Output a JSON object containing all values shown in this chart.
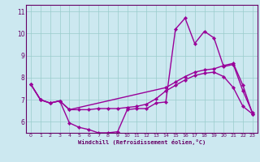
{
  "title": "",
  "xlabel": "Windchill (Refroidissement éolien,°C)",
  "background_color": "#cce8f0",
  "line_color": "#990099",
  "grid_color": "#99cccc",
  "axis_color": "#660066",
  "text_color": "#660066",
  "xlim": [
    -0.5,
    23.5
  ],
  "ylim": [
    5.5,
    11.3
  ],
  "yticks": [
    6,
    7,
    8,
    9,
    10,
    11
  ],
  "xticks": [
    0,
    1,
    2,
    3,
    4,
    5,
    6,
    7,
    8,
    9,
    10,
    11,
    12,
    13,
    14,
    15,
    16,
    17,
    18,
    19,
    20,
    21,
    22,
    23
  ],
  "line1_x": [
    0,
    1,
    2,
    3,
    4,
    5,
    6,
    7,
    8,
    9,
    10,
    11,
    12,
    13,
    14,
    15,
    16,
    17,
    18,
    19,
    20,
    21,
    22,
    23
  ],
  "line1_y": [
    7.7,
    7.0,
    6.85,
    6.95,
    5.95,
    5.75,
    5.65,
    5.5,
    5.5,
    5.55,
    6.55,
    6.6,
    6.6,
    6.85,
    6.9,
    10.2,
    10.7,
    9.55,
    10.1,
    9.8,
    8.5,
    8.6,
    7.4,
    6.4
  ],
  "line2_x": [
    0,
    1,
    2,
    3,
    4,
    5,
    6,
    7,
    8,
    9,
    10,
    11,
    12,
    13,
    14,
    15,
    16,
    17,
    18,
    19,
    20,
    21,
    22,
    23
  ],
  "line2_y": [
    7.7,
    7.0,
    6.85,
    6.95,
    6.55,
    6.55,
    6.55,
    6.6,
    6.6,
    6.6,
    6.65,
    6.7,
    6.8,
    7.05,
    7.4,
    7.65,
    7.9,
    8.1,
    8.2,
    8.25,
    8.05,
    7.55,
    6.7,
    6.35
  ],
  "line3_x": [
    0,
    1,
    2,
    3,
    4,
    14,
    15,
    16,
    17,
    18,
    19,
    20,
    21,
    22,
    23
  ],
  "line3_y": [
    7.7,
    7.0,
    6.85,
    6.95,
    6.55,
    7.55,
    7.8,
    8.05,
    8.25,
    8.35,
    8.4,
    8.55,
    8.65,
    7.65,
    6.35
  ],
  "marker": "D",
  "markersize": 2.2,
  "linewidth": 1.0
}
